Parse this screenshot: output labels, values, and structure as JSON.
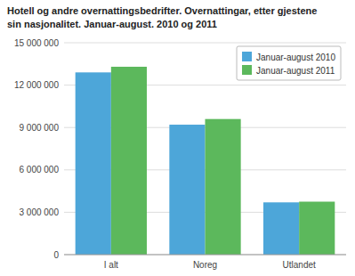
{
  "chart_data": {
    "type": "bar",
    "title": "Hotell og andre overnattingsbedrifter. Overnattingar, etter gjestene\nsin nasjonalitet. Januar-august. 2010 og 2011",
    "categories": [
      "I alt",
      "Noreg",
      "Utlandet"
    ],
    "series": [
      {
        "name": "Januar-august 2010",
        "color": "#4da6d9",
        "values": [
          12900000,
          9200000,
          3700000
        ]
      },
      {
        "name": "Januar-august 2011",
        "color": "#5cb85c",
        "values": [
          13300000,
          9600000,
          3750000
        ]
      }
    ],
    "ylim": [
      0,
      15000000
    ],
    "yticks": [
      {
        "value": 0,
        "label": "0"
      },
      {
        "value": 3000000,
        "label": "3 000 000"
      },
      {
        "value": 6000000,
        "label": "6 000 000"
      },
      {
        "value": 9000000,
        "label": "9 000 000"
      },
      {
        "value": 12000000,
        "label": "12 000 000"
      },
      {
        "value": 15000000,
        "label": "15 000 000"
      }
    ],
    "grid": true,
    "legend": "upper right"
  }
}
